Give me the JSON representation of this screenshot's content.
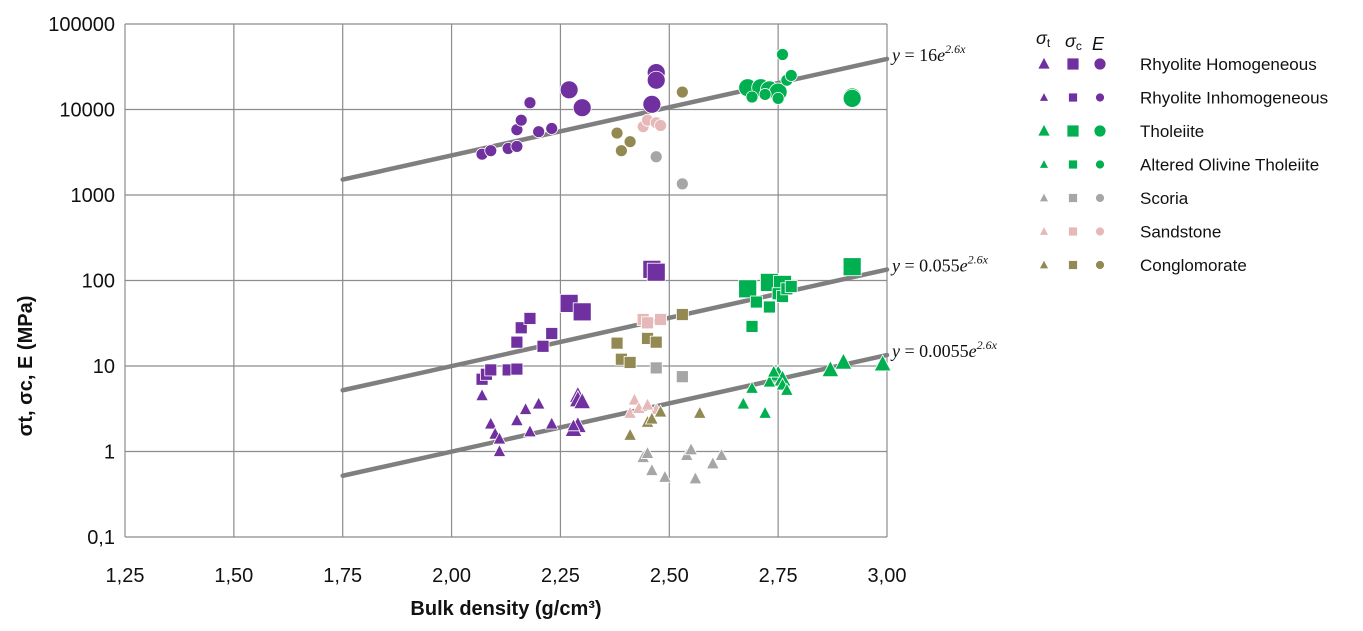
{
  "chart_data": {
    "type": "scatter",
    "xlabel": "Bulk density (g/cm³)",
    "ylabel": "σt, σc, E (MPa)",
    "x_ticks": [
      "1,25",
      "1,50",
      "1,75",
      "2,00",
      "2,25",
      "2,50",
      "2,75",
      "3,00"
    ],
    "y_ticks": [
      "0,1",
      "1",
      "10",
      "100",
      "1000",
      "10000",
      "100000"
    ],
    "xlim": [
      1.25,
      3.0
    ],
    "ylim": [
      0.1,
      100000
    ],
    "y_scale": "log",
    "grid": true,
    "legend_placement": "right",
    "legend_header": [
      "σt",
      "σc",
      "E"
    ],
    "marker_legend": {
      "triangle": "σt",
      "square": "σc",
      "circle": "E"
    },
    "fit_lines": [
      {
        "label": "y = 16e^2.6x",
        "a": 16,
        "b": 2.6,
        "x_range": [
          1.75,
          3.0
        ],
        "color": "#7f7f7f"
      },
      {
        "label": "y = 0.055e^2.6x",
        "a": 0.055,
        "b": 2.6,
        "x_range": [
          1.75,
          3.0
        ],
        "color": "#7f7f7f"
      },
      {
        "label": "y = 0.0055e^2.6x",
        "a": 0.0055,
        "b": 2.6,
        "x_range": [
          1.75,
          3.0
        ],
        "color": "#7f7f7f"
      }
    ],
    "series": [
      {
        "name": "Rhyolite Homogeneous",
        "color": "#7030a0",
        "marker_size": "large",
        "sigma_t": [
          [
            2.29,
            4.5
          ],
          [
            2.29,
            4.0
          ],
          [
            2.3,
            3.8
          ],
          [
            2.29,
            2.0
          ],
          [
            2.28,
            1.8
          ]
        ],
        "sigma_c": [
          [
            2.27,
            54
          ],
          [
            2.3,
            43
          ],
          [
            2.46,
            135
          ],
          [
            2.47,
            125
          ]
        ],
        "E": [
          [
            2.27,
            17000
          ],
          [
            2.3,
            10500
          ],
          [
            2.47,
            27000
          ],
          [
            2.47,
            22000
          ],
          [
            2.46,
            11500
          ]
        ]
      },
      {
        "name": "Rhyolite Inhomogeneous",
        "color": "#7030a0",
        "marker_size": "small",
        "sigma_t": [
          [
            2.07,
            4.5
          ],
          [
            2.09,
            2.1
          ],
          [
            2.1,
            1.6
          ],
          [
            2.11,
            1.4
          ],
          [
            2.11,
            1.0
          ],
          [
            2.15,
            2.3
          ],
          [
            2.17,
            3.1
          ],
          [
            2.18,
            1.7
          ],
          [
            2.2,
            3.6
          ],
          [
            2.23,
            2.1
          ],
          [
            2.28,
            2.0
          ]
        ],
        "sigma_c": [
          [
            2.07,
            7.0
          ],
          [
            2.08,
            8.0
          ],
          [
            2.09,
            9.0
          ],
          [
            2.13,
            9.0
          ],
          [
            2.15,
            9.2
          ],
          [
            2.15,
            19
          ],
          [
            2.16,
            28
          ],
          [
            2.18,
            36
          ],
          [
            2.21,
            17
          ],
          [
            2.23,
            24
          ]
        ],
        "E": [
          [
            2.07,
            3000
          ],
          [
            2.09,
            3300
          ],
          [
            2.13,
            3500
          ],
          [
            2.15,
            3700
          ],
          [
            2.15,
            5800
          ],
          [
            2.16,
            7500
          ],
          [
            2.18,
            12000
          ],
          [
            2.2,
            5500
          ],
          [
            2.23,
            6000
          ]
        ]
      },
      {
        "name": "Tholeiite",
        "color": "#00b050",
        "marker_size": "large",
        "sigma_t": [
          [
            2.87,
            9.0
          ],
          [
            2.9,
            11
          ],
          [
            2.99,
            10.5
          ],
          [
            2.75,
            8.0
          ],
          [
            2.76,
            7.0
          ]
        ],
        "sigma_c": [
          [
            2.68,
            80
          ],
          [
            2.73,
            95
          ],
          [
            2.76,
            90
          ],
          [
            2.92,
            145
          ]
        ],
        "E": [
          [
            2.68,
            18000
          ],
          [
            2.71,
            18000
          ],
          [
            2.73,
            17000
          ],
          [
            2.75,
            16000
          ],
          [
            2.92,
            14000
          ],
          [
            2.92,
            13500
          ]
        ]
      },
      {
        "name": "Altered Olivine Tholeiite",
        "color": "#00b050",
        "marker_size": "small",
        "sigma_t": [
          [
            2.67,
            3.6
          ],
          [
            2.69,
            5.5
          ],
          [
            2.72,
            2.8
          ],
          [
            2.73,
            6.5
          ],
          [
            2.74,
            8.5
          ],
          [
            2.76,
            6.0
          ],
          [
            2.77,
            5.2
          ]
        ],
        "sigma_c": [
          [
            2.69,
            29
          ],
          [
            2.7,
            56
          ],
          [
            2.73,
            49
          ],
          [
            2.75,
            70
          ],
          [
            2.76,
            65
          ],
          [
            2.77,
            80
          ],
          [
            2.78,
            85
          ]
        ],
        "E": [
          [
            2.69,
            14000
          ],
          [
            2.72,
            15000
          ],
          [
            2.75,
            13500
          ],
          [
            2.76,
            44000
          ],
          [
            2.77,
            22000
          ],
          [
            2.78,
            25000
          ]
        ]
      },
      {
        "name": "Scoria",
        "color": "#a6a6a6",
        "marker_size": "small",
        "sigma_t": [
          [
            2.44,
            0.85
          ],
          [
            2.45,
            0.95
          ],
          [
            2.46,
            0.6
          ],
          [
            2.49,
            0.5
          ],
          [
            2.54,
            0.9
          ],
          [
            2.55,
            1.05
          ],
          [
            2.56,
            0.48
          ],
          [
            2.6,
            0.72
          ],
          [
            2.62,
            0.9
          ]
        ],
        "sigma_c": [
          [
            2.47,
            9.5
          ],
          [
            2.53,
            7.5
          ]
        ],
        "E": [
          [
            2.47,
            2800
          ],
          [
            2.53,
            1350
          ]
        ]
      },
      {
        "name": "Sandstone",
        "color": "#e6b9b8",
        "marker_size": "small",
        "sigma_t": [
          [
            2.41,
            2.8
          ],
          [
            2.42,
            4.0
          ],
          [
            2.43,
            3.2
          ],
          [
            2.47,
            3.1
          ],
          [
            2.45,
            3.5
          ]
        ],
        "sigma_c": [
          [
            2.44,
            35
          ],
          [
            2.45,
            32
          ],
          [
            2.48,
            35
          ]
        ],
        "E": [
          [
            2.44,
            6300
          ],
          [
            2.45,
            7500
          ],
          [
            2.47,
            7000
          ],
          [
            2.48,
            6500
          ]
        ]
      },
      {
        "name": "Conglomorate",
        "color": "#938953",
        "marker_size": "small",
        "sigma_t": [
          [
            2.41,
            1.55
          ],
          [
            2.45,
            2.2
          ],
          [
            2.46,
            2.4
          ],
          [
            2.48,
            2.9
          ],
          [
            2.57,
            2.8
          ]
        ],
        "sigma_c": [
          [
            2.38,
            18.5
          ],
          [
            2.39,
            12
          ],
          [
            2.41,
            11
          ],
          [
            2.45,
            21
          ],
          [
            2.47,
            19
          ],
          [
            2.53,
            40
          ]
        ],
        "E": [
          [
            2.38,
            5300
          ],
          [
            2.39,
            3300
          ],
          [
            2.41,
            4200
          ],
          [
            2.53,
            16000
          ]
        ]
      }
    ]
  }
}
